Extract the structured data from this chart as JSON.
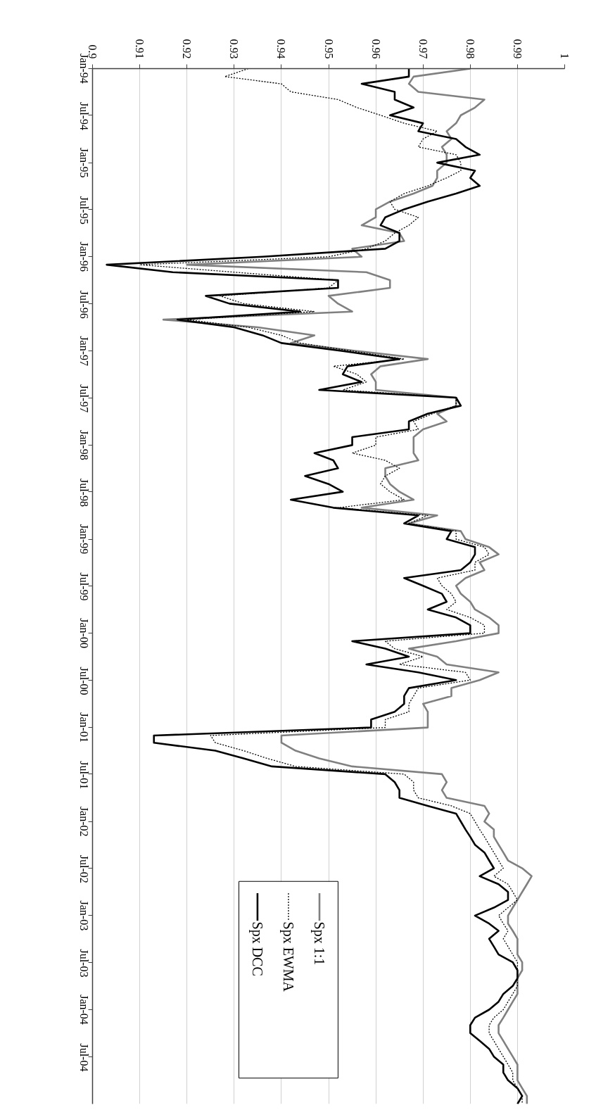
{
  "chart_data": {
    "type": "line",
    "x": [
      "1994-01",
      "1994-02",
      "1994-03",
      "1994-04",
      "1994-05",
      "1994-06",
      "1994-07",
      "1994-08",
      "1994-09",
      "1994-10",
      "1994-11",
      "1994-12",
      "1995-01",
      "1995-02",
      "1995-03",
      "1995-04",
      "1995-05",
      "1995-06",
      "1995-07",
      "1995-08",
      "1995-09",
      "1995-10",
      "1995-11",
      "1995-12",
      "1996-01",
      "1996-02",
      "1996-03",
      "1996-04",
      "1996-05",
      "1996-06",
      "1996-07",
      "1996-08",
      "1996-09",
      "1996-10",
      "1996-11",
      "1996-12",
      "1997-01",
      "1997-02",
      "1997-03",
      "1997-04",
      "1997-05",
      "1997-06",
      "1997-07",
      "1997-08",
      "1997-09",
      "1997-10",
      "1997-11",
      "1997-12",
      "1998-01",
      "1998-02",
      "1998-03",
      "1998-04",
      "1998-05",
      "1998-06",
      "1998-07",
      "1998-08",
      "1998-09",
      "1998-10",
      "1998-11",
      "1998-12",
      "1999-01",
      "1999-02",
      "1999-03",
      "1999-04",
      "1999-05",
      "1999-06",
      "1999-07",
      "1999-08",
      "1999-09",
      "1999-10",
      "1999-11",
      "1999-12",
      "2000-01",
      "2000-02",
      "2000-03",
      "2000-04",
      "2000-05",
      "2000-06",
      "2000-07",
      "2000-08",
      "2000-09",
      "2000-10",
      "2000-11",
      "2000-12",
      "2001-01",
      "2001-02",
      "2001-03",
      "2001-04",
      "2001-05",
      "2001-06",
      "2001-07",
      "2001-08",
      "2001-09",
      "2001-10",
      "2001-11",
      "2001-12",
      "2002-01",
      "2002-02",
      "2002-03",
      "2002-04",
      "2002-05",
      "2002-06",
      "2002-07",
      "2002-08",
      "2002-09",
      "2002-10",
      "2002-11",
      "2002-12",
      "2003-01",
      "2003-02",
      "2003-03",
      "2003-04",
      "2003-05",
      "2003-06",
      "2003-07",
      "2003-08",
      "2003-09",
      "2003-10",
      "2003-11",
      "2003-12",
      "2004-01",
      "2004-02",
      "2004-03",
      "2004-04",
      "2004-05",
      "2004-06",
      "2004-07",
      "2004-08",
      "2004-09",
      "2004-10",
      "2004-11",
      "2004-12",
      "2005-01"
    ],
    "series": [
      {
        "name": "Spx 1:1",
        "color": "#808080",
        "line_style": "solid",
        "values": [
          0.98,
          0.968,
          0.967,
          0.969,
          0.983,
          0.981,
          0.978,
          0.977,
          0.975,
          0.976,
          0.974,
          0.975,
          0.975,
          0.973,
          0.973,
          0.972,
          0.968,
          0.963,
          0.96,
          0.96,
          0.957,
          0.965,
          0.966,
          0.955,
          0.957,
          0.92,
          0.958,
          0.963,
          0.963,
          0.95,
          0.952,
          0.955,
          0.915,
          0.935,
          0.947,
          0.942,
          0.956,
          0.971,
          0.961,
          0.959,
          0.96,
          0.96,
          0.977,
          0.977,
          0.973,
          0.975,
          0.97,
          0.968,
          0.968,
          0.968,
          0.969,
          0.962,
          0.962,
          0.963,
          0.965,
          0.968,
          0.957,
          0.973,
          0.967,
          0.978,
          0.979,
          0.984,
          0.986,
          0.982,
          0.983,
          0.979,
          0.977,
          0.978,
          0.98,
          0.981,
          0.984,
          0.986,
          0.986,
          0.977,
          0.967,
          0.973,
          0.975,
          0.986,
          0.982,
          0.976,
          0.976,
          0.97,
          0.971,
          0.971,
          0.971,
          0.94,
          0.94,
          0.943,
          0.948,
          0.955,
          0.974,
          0.975,
          0.974,
          0.975,
          0.983,
          0.984,
          0.983,
          0.985,
          0.985,
          0.986,
          0.987,
          0.988,
          0.991,
          0.993,
          0.992,
          0.991,
          0.99,
          0.989,
          0.988,
          0.988,
          0.989,
          0.99,
          0.99,
          0.99,
          0.991,
          0.991,
          0.99,
          0.99,
          0.99,
          0.989,
          0.988,
          0.987,
          0.986,
          0.986,
          0.987,
          0.988,
          0.989,
          0.99,
          0.99,
          0.99,
          0.991,
          0.992,
          0.992
        ]
      },
      {
        "name": "Spx EWMA",
        "color": "#000000",
        "line_style": "dotted",
        "values": [
          0.933,
          0.928,
          0.94,
          0.942,
          0.952,
          0.956,
          0.961,
          0.966,
          0.973,
          0.97,
          0.969,
          0.977,
          0.978,
          0.978,
          0.975,
          0.971,
          0.966,
          0.963,
          0.964,
          0.969,
          0.967,
          0.964,
          0.962,
          0.958,
          0.95,
          0.91,
          0.93,
          0.952,
          0.95,
          0.927,
          0.932,
          0.947,
          0.92,
          0.933,
          0.94,
          0.944,
          0.955,
          0.966,
          0.951,
          0.956,
          0.958,
          0.953,
          0.977,
          0.977,
          0.972,
          0.968,
          0.969,
          0.96,
          0.96,
          0.955,
          0.962,
          0.965,
          0.962,
          0.961,
          0.963,
          0.966,
          0.952,
          0.971,
          0.967,
          0.977,
          0.977,
          0.983,
          0.984,
          0.981,
          0.981,
          0.973,
          0.974,
          0.976,
          0.977,
          0.975,
          0.98,
          0.983,
          0.983,
          0.962,
          0.964,
          0.97,
          0.965,
          0.979,
          0.98,
          0.969,
          0.968,
          0.967,
          0.967,
          0.962,
          0.962,
          0.925,
          0.926,
          0.932,
          0.937,
          0.943,
          0.966,
          0.968,
          0.968,
          0.969,
          0.976,
          0.98,
          0.981,
          0.982,
          0.983,
          0.984,
          0.985,
          0.986,
          0.987,
          0.985,
          0.988,
          0.989,
          0.99,
          0.988,
          0.986,
          0.987,
          0.988,
          0.987,
          0.988,
          0.989,
          0.99,
          0.99,
          0.99,
          0.99,
          0.989,
          0.988,
          0.987,
          0.985,
          0.984,
          0.984,
          0.985,
          0.986,
          0.987,
          0.988,
          0.989,
          0.989,
          0.99,
          0.991,
          0.991
        ]
      },
      {
        "name": "Spx DCC",
        "color": "#000000",
        "line_style": "solid",
        "values": [
          0.967,
          0.967,
          0.957,
          0.964,
          0.964,
          0.968,
          0.963,
          0.97,
          0.969,
          0.977,
          0.979,
          0.982,
          0.973,
          0.981,
          0.98,
          0.982,
          0.977,
          0.971,
          0.966,
          0.962,
          0.961,
          0.965,
          0.965,
          0.962,
          0.936,
          0.903,
          0.917,
          0.952,
          0.952,
          0.924,
          0.929,
          0.944,
          0.918,
          0.93,
          0.936,
          0.94,
          0.953,
          0.965,
          0.954,
          0.953,
          0.957,
          0.948,
          0.977,
          0.978,
          0.971,
          0.967,
          0.967,
          0.955,
          0.955,
          0.947,
          0.951,
          0.952,
          0.945,
          0.95,
          0.953,
          0.942,
          0.951,
          0.969,
          0.966,
          0.976,
          0.975,
          0.981,
          0.981,
          0.98,
          0.978,
          0.966,
          0.97,
          0.974,
          0.975,
          0.971,
          0.977,
          0.98,
          0.98,
          0.955,
          0.962,
          0.967,
          0.958,
          0.969,
          0.977,
          0.967,
          0.966,
          0.966,
          0.964,
          0.959,
          0.959,
          0.913,
          0.913,
          0.926,
          0.932,
          0.938,
          0.962,
          0.964,
          0.965,
          0.965,
          0.971,
          0.977,
          0.978,
          0.979,
          0.98,
          0.981,
          0.983,
          0.984,
          0.985,
          0.982,
          0.986,
          0.988,
          0.988,
          0.985,
          0.981,
          0.984,
          0.986,
          0.984,
          0.985,
          0.986,
          0.989,
          0.99,
          0.99,
          0.989,
          0.987,
          0.986,
          0.984,
          0.981,
          0.98,
          0.98,
          0.982,
          0.984,
          0.985,
          0.987,
          0.987,
          0.988,
          0.99,
          0.991,
          0.99
        ]
      }
    ],
    "orientation": "horizontal",
    "ylim": [
      "2005-01",
      "1994-01"
    ],
    "yticks": [
      {
        "value": "1994-01",
        "label": "Jan-94"
      },
      {
        "value": "1994-07",
        "label": "Jul-94"
      },
      {
        "value": "1995-01",
        "label": "Jan-95"
      },
      {
        "value": "1995-07",
        "label": "Jul-95"
      },
      {
        "value": "1996-01",
        "label": "Jan-96"
      },
      {
        "value": "1996-07",
        "label": "Jul-96"
      },
      {
        "value": "1997-01",
        "label": "Jan-97"
      },
      {
        "value": "1997-07",
        "label": "Jul-97"
      },
      {
        "value": "1998-01",
        "label": "Jan-98"
      },
      {
        "value": "1998-07",
        "label": "Jul-98"
      },
      {
        "value": "1999-01",
        "label": "Jan-99"
      },
      {
        "value": "1999-07",
        "label": "Jul-99"
      },
      {
        "value": "2000-01",
        "label": "Jan-00"
      },
      {
        "value": "2000-07",
        "label": "Jul-00"
      },
      {
        "value": "2001-01",
        "label": "Jan-01"
      },
      {
        "value": "2001-07",
        "label": "Jul-01"
      },
      {
        "value": "2002-01",
        "label": "Jan-02"
      },
      {
        "value": "2002-07",
        "label": "Jul-02"
      },
      {
        "value": "2003-01",
        "label": "Jan-03"
      },
      {
        "value": "2003-07",
        "label": "Jul-03"
      },
      {
        "value": "2004-01",
        "label": "Jan-04"
      },
      {
        "value": "2004-07",
        "label": "Jul-04"
      }
    ],
    "xlim": [
      0.9,
      1
    ],
    "xticks": [
      0.9,
      0.91,
      0.92,
      0.93,
      0.94,
      0.95,
      0.96,
      0.97,
      0.98,
      0.99,
      1
    ],
    "grid": "x",
    "legend": "bottom left"
  }
}
